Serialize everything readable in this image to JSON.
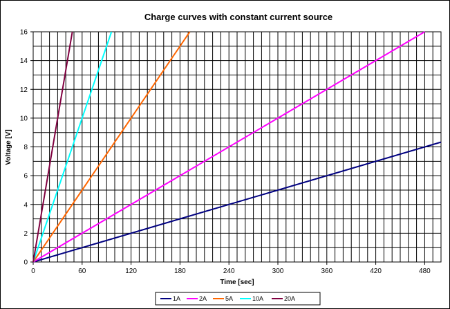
{
  "chart_data": {
    "type": "line",
    "title": "Charge curves with constant current source",
    "xlabel": "Time [sec]",
    "ylabel": "Voltage [V]",
    "xlim": [
      0,
      500
    ],
    "ylim": [
      0,
      16
    ],
    "x_ticks": [
      0,
      60,
      120,
      180,
      240,
      300,
      360,
      420,
      480
    ],
    "y_ticks": [
      0,
      2,
      4,
      6,
      8,
      10,
      12,
      14,
      16
    ],
    "x_minor_step": 10,
    "y_minor_step": 1,
    "grid": true,
    "legend_position": "bottom",
    "series": [
      {
        "name": "1A",
        "color": "#000080",
        "x": [
          0,
          500
        ],
        "y": [
          0,
          8.33
        ]
      },
      {
        "name": "2A",
        "color": "#FF00FF",
        "x": [
          0,
          480
        ],
        "y": [
          0,
          16
        ]
      },
      {
        "name": "5A",
        "color": "#FF6600",
        "x": [
          0,
          192
        ],
        "y": [
          0,
          16
        ]
      },
      {
        "name": "10A",
        "color": "#00FFFF",
        "x": [
          0,
          96
        ],
        "y": [
          0,
          16
        ]
      },
      {
        "name": "20A",
        "color": "#800040",
        "x": [
          0,
          48
        ],
        "y": [
          0,
          16
        ]
      }
    ]
  }
}
